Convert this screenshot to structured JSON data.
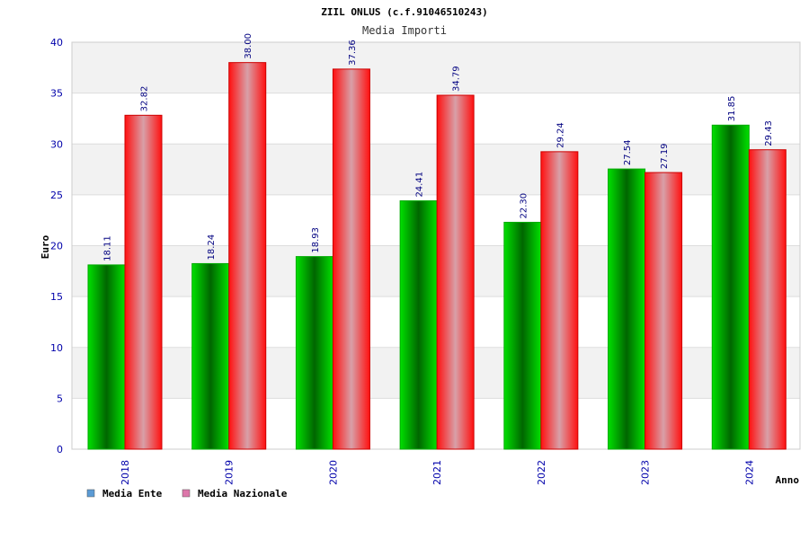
{
  "chart_data": {
    "type": "bar",
    "title": "ZIIL ONLUS (c.f.91046510243)",
    "subtitle": "Media Importi",
    "xlabel": "Anno",
    "ylabel": "Euro",
    "categories": [
      "2018",
      "2019",
      "2020",
      "2021",
      "2022",
      "2023",
      "2024"
    ],
    "series": [
      {
        "name": "Media Ente",
        "values": [
          18.11,
          18.24,
          18.93,
          24.41,
          22.3,
          27.54,
          31.85
        ],
        "labels": [
          "18.11",
          "18.24",
          "18.93",
          "24.41",
          "22.30",
          "27.54",
          "31.85"
        ],
        "color": "#00bb00",
        "legend_color": "#5b9bd5"
      },
      {
        "name": "Media Nazionale",
        "values": [
          32.82,
          38.0,
          37.36,
          34.79,
          29.24,
          27.19,
          29.43
        ],
        "labels": [
          "32.82",
          "38.00",
          "37.36",
          "34.79",
          "29.24",
          "27.19",
          "29.43"
        ],
        "color": "#ee1111",
        "legend_color": "#dd77aa"
      }
    ],
    "ylim": [
      0,
      40
    ],
    "yticks": [
      0,
      5,
      10,
      15,
      20,
      25,
      30,
      35,
      40
    ],
    "grid": true,
    "legend_position": "bottom-left"
  }
}
